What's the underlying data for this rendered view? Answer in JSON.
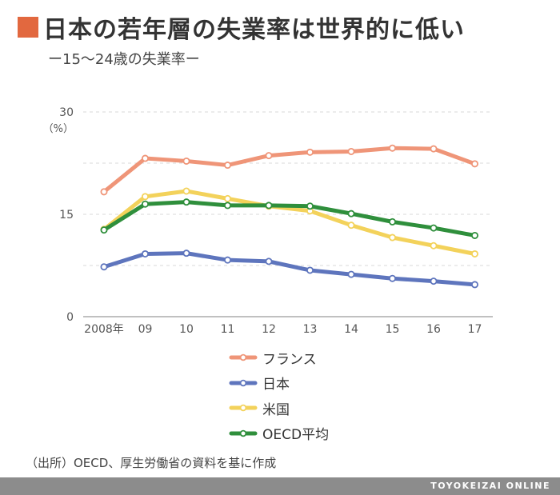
{
  "header": {
    "title": "日本の若年層の失業率は世界的に低い",
    "subtitle": "ー15〜24歳の失業率ー",
    "accent_color": "#e2683f"
  },
  "chart_data": {
    "type": "line",
    "x": [
      "2008年",
      "09",
      "10",
      "11",
      "12",
      "13",
      "14",
      "15",
      "16",
      "17"
    ],
    "ylim": [
      0,
      30
    ],
    "yticks": [
      0,
      15,
      30
    ],
    "ylabel": "（%）",
    "grid": true,
    "legend_position": "bottom",
    "series": [
      {
        "name": "フランス",
        "color": "#ef9578",
        "values": [
          18.3,
          23.2,
          22.8,
          22.2,
          23.6,
          24.1,
          24.2,
          24.7,
          24.6,
          22.4
        ]
      },
      {
        "name": "日本",
        "color": "#5e75bd",
        "values": [
          7.3,
          9.2,
          9.3,
          8.3,
          8.1,
          6.8,
          6.2,
          5.6,
          5.2,
          4.7
        ]
      },
      {
        "name": "米国",
        "color": "#f3d25b",
        "values": [
          12.8,
          17.6,
          18.4,
          17.3,
          16.2,
          15.5,
          13.4,
          11.6,
          10.4,
          9.2
        ]
      },
      {
        "name": "OECD平均",
        "color": "#2f8f3c",
        "values": [
          12.7,
          16.5,
          16.8,
          16.3,
          16.3,
          16.2,
          15.1,
          13.9,
          13.0,
          11.9
        ]
      }
    ]
  },
  "source": "（出所）OECD、厚生労働省の資料を基に作成",
  "footer": {
    "brand": "TOYOKEIZAI ONLINE"
  }
}
